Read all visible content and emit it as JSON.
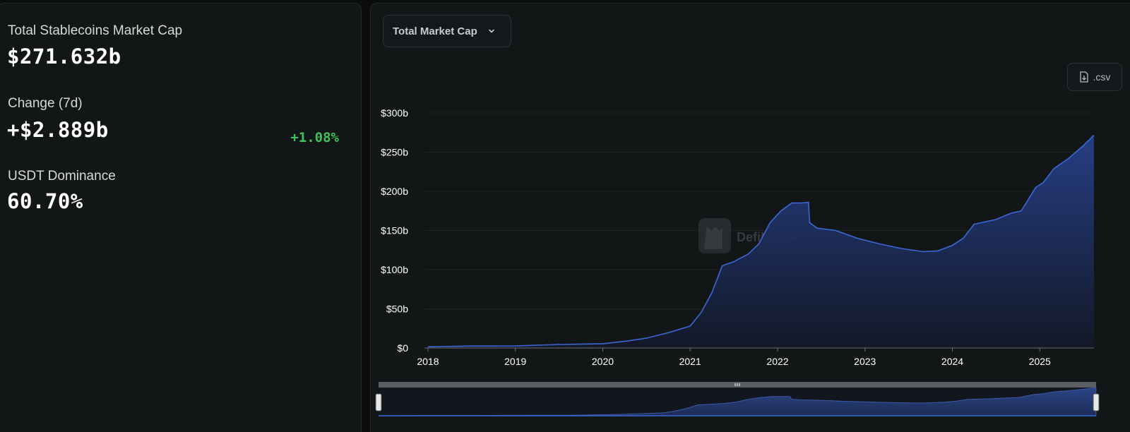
{
  "stats": {
    "market_cap_label": "Total Stablecoins Market Cap",
    "market_cap_value": "$271.632b",
    "change_label": "Change (7d)",
    "change_value": "+$2.889b",
    "change_pct": "+1.08%",
    "dominance_label": "USDT Dominance",
    "dominance_value": "60.70%"
  },
  "controls": {
    "metric_dropdown": "Total Market Cap",
    "csv_label": ".csv"
  },
  "watermark": "DefiLlama",
  "colors": {
    "accent": "#3b68d6",
    "positive": "#3ec25b",
    "panel": "#131617",
    "fill_top": "#27418a"
  },
  "chart_data": {
    "type": "area",
    "title": "",
    "xlabel": "",
    "ylabel": "",
    "x_ticks": [
      "2018",
      "2019",
      "2020",
      "2021",
      "2022",
      "2023",
      "2024",
      "2025"
    ],
    "y_ticks": [
      "$0",
      "$50b",
      "$100b",
      "$150b",
      "$200b",
      "$250b",
      "$300b"
    ],
    "ylim": [
      0,
      300
    ],
    "grid": true,
    "series": [
      {
        "unit": "billions USD",
        "points": [
          [
            "2018-01-01",
            1.5
          ],
          [
            "2018-07-01",
            2.5
          ],
          [
            "2019-01-01",
            2.6
          ],
          [
            "2019-07-01",
            4.5
          ],
          [
            "2020-01-01",
            5.5
          ],
          [
            "2020-04-01",
            8.5
          ],
          [
            "2020-07-01",
            12.5
          ],
          [
            "2020-10-01",
            19.5
          ],
          [
            "2021-01-01",
            28
          ],
          [
            "2021-02-15",
            45
          ],
          [
            "2021-04-01",
            70
          ],
          [
            "2021-05-15",
            105
          ],
          [
            "2021-07-01",
            110
          ],
          [
            "2021-09-01",
            120
          ],
          [
            "2021-10-15",
            133
          ],
          [
            "2021-12-01",
            160
          ],
          [
            "2022-01-15",
            175
          ],
          [
            "2022-03-01",
            185
          ],
          [
            "2022-04-15",
            185
          ],
          [
            "2022-05-10",
            186
          ],
          [
            "2022-05-15",
            160
          ],
          [
            "2022-06-15",
            153
          ],
          [
            "2022-09-01",
            150
          ],
          [
            "2022-12-01",
            140
          ],
          [
            "2023-03-01",
            133
          ],
          [
            "2023-06-01",
            127
          ],
          [
            "2023-09-01",
            123
          ],
          [
            "2023-11-01",
            124
          ],
          [
            "2024-01-01",
            131
          ],
          [
            "2024-02-15",
            140
          ],
          [
            "2024-04-01",
            158
          ],
          [
            "2024-07-01",
            164
          ],
          [
            "2024-09-01",
            172
          ],
          [
            "2024-10-15",
            175
          ],
          [
            "2024-11-15",
            190
          ],
          [
            "2024-12-15",
            205
          ],
          [
            "2025-01-15",
            211
          ],
          [
            "2025-03-01",
            229
          ],
          [
            "2025-05-01",
            242
          ],
          [
            "2025-07-01",
            258
          ],
          [
            "2025-08-15",
            271.6
          ]
        ]
      }
    ],
    "range_selector": true
  }
}
